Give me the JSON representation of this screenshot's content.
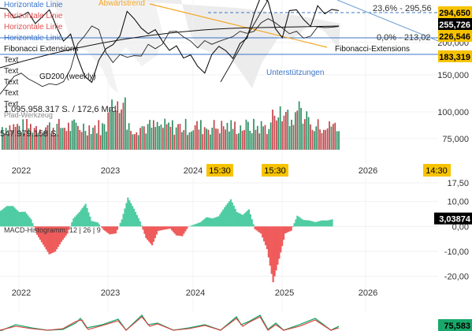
{
  "drawing_labels": {
    "horizontal_lines": [
      "Horizontale Linie",
      "Horizontale Linie",
      "Horizontale Linie",
      "Horizontale Linie"
    ],
    "texts": [
      "Text",
      "Text",
      "Text",
      "Text",
      "Text"
    ],
    "fib_ext_left": "Fibonacci Extensions",
    "fib_ext_right": "Fibonacci-Extensions",
    "abwaertstrend": "Abwärtstrend",
    "gd200": "GD200 (weekly)",
    "unterstuetzungen": "Unterstützungen",
    "pfad": "Pfad-Werkzeug",
    "fib_236": "23,6% - 295,56",
    "fib_00": "0,0% - 213,02"
  },
  "time_badges": {
    "b1": "15:30",
    "b2": "15:30",
    "b3": "14:30"
  },
  "chart_data": [
    {
      "type": "line",
      "title": "",
      "xlabel": "",
      "ylabel": "",
      "x_ticks": [
        "2022",
        "2023",
        "2024",
        "2025",
        "2026"
      ],
      "y_ticks": [
        "200,000",
        "150,000",
        "100,000",
        "75,000"
      ],
      "ylim": [
        60000,
        320000
      ],
      "price_markers": [
        {
          "label": "294,650",
          "value": 294650,
          "color": "#f7c300"
        },
        {
          "label": "255,726",
          "value": 255726,
          "color": "#000000"
        },
        {
          "label": "226,546",
          "value": 226546,
          "color": "#f7c300"
        },
        {
          "label": "183,319",
          "value": 183319,
          "color": "#f7c300"
        }
      ],
      "volume_labels": [
        "1.095.958.317 S. / 172,6 Mrd.",
        "547.979.158 S."
      ],
      "series": [
        {
          "values": [
            300000,
            298000,
            276000,
            281000,
            290000,
            262000,
            279000,
            296000,
            254000,
            219000,
            236000,
            178000,
            132000,
            117000,
            172000,
            200000,
            210000,
            232000,
            292000,
            274000,
            251000,
            237000,
            247000,
            219000,
            196000,
            207000,
            177000,
            185000,
            157000,
            140000,
            186000,
            206000,
            195000,
            176000,
            213000,
            226000,
            286000,
            331000,
            316000,
            250000,
            227000,
            294000,
            296000,
            272000,
            255000,
            306000,
            286000,
            297000,
            294000
          ]
        },
        {
          "values": [
            88000,
            110000,
            132000,
            140000,
            126000,
            117000,
            107000,
            114000,
            111000,
            119000,
            150000,
            212000,
            232000,
            256000,
            247000,
            191000,
            166000,
            186000,
            179000,
            183000,
            182000,
            211000,
            200000,
            211000,
            242000,
            243000,
            229000,
            219000,
            202000,
            220000,
            211000,
            218000,
            224000,
            230000,
            243000,
            238000,
            243000,
            264000,
            274000,
            264000,
            251000,
            237000,
            243000,
            226000,
            231000,
            254000,
            252000,
            253000,
            255000
          ]
        }
      ]
    },
    {
      "type": "bar",
      "title": "MACD-Histogramm: 12 | 26 | 9",
      "xlabel": "",
      "ylabel": "",
      "x_ticks": [
        "2022",
        "2023",
        "2024",
        "2025",
        "2026"
      ],
      "y_ticks": [
        "17,50",
        "10,00",
        "0,00",
        "-10,00",
        "-20,00"
      ],
      "ylim": [
        -23,
        17.5
      ],
      "last_value_label": "3,03874",
      "last_value": 3.03874,
      "values": [
        6.3,
        8.2,
        8.2,
        5.8,
        5.9,
        2.9,
        -3.4,
        -7.3,
        -11.2,
        -10.1,
        -6.2,
        -2.9,
        3.2,
        5.8,
        9.1,
        2.2,
        1.6,
        -1.4,
        -3.2,
        -2.8,
        2.8,
        11.6,
        7.1,
        2.1,
        -4.7,
        -7.6,
        -1.8,
        -1.3,
        -0.9,
        -3.6,
        -3.9,
        -0.1,
        0.8,
        1.7,
        3.7,
        3.2,
        4.1,
        7.7,
        10.9,
        5.8,
        4.6,
        6.9,
        -1.1,
        -2.9,
        -9.1,
        -22.4,
        -13.0,
        -2.8,
        -1.7,
        4.3,
        2.6,
        2.4,
        1.7,
        2.4,
        2.4,
        3.0
      ]
    },
    {
      "type": "line",
      "title": "",
      "xlabel": "",
      "ylabel": "",
      "x_ticks": [
        "2022",
        "2023",
        "2024",
        "2025",
        "2026"
      ],
      "last_value_label": "75,583",
      "last_value": 75.583
    }
  ]
}
